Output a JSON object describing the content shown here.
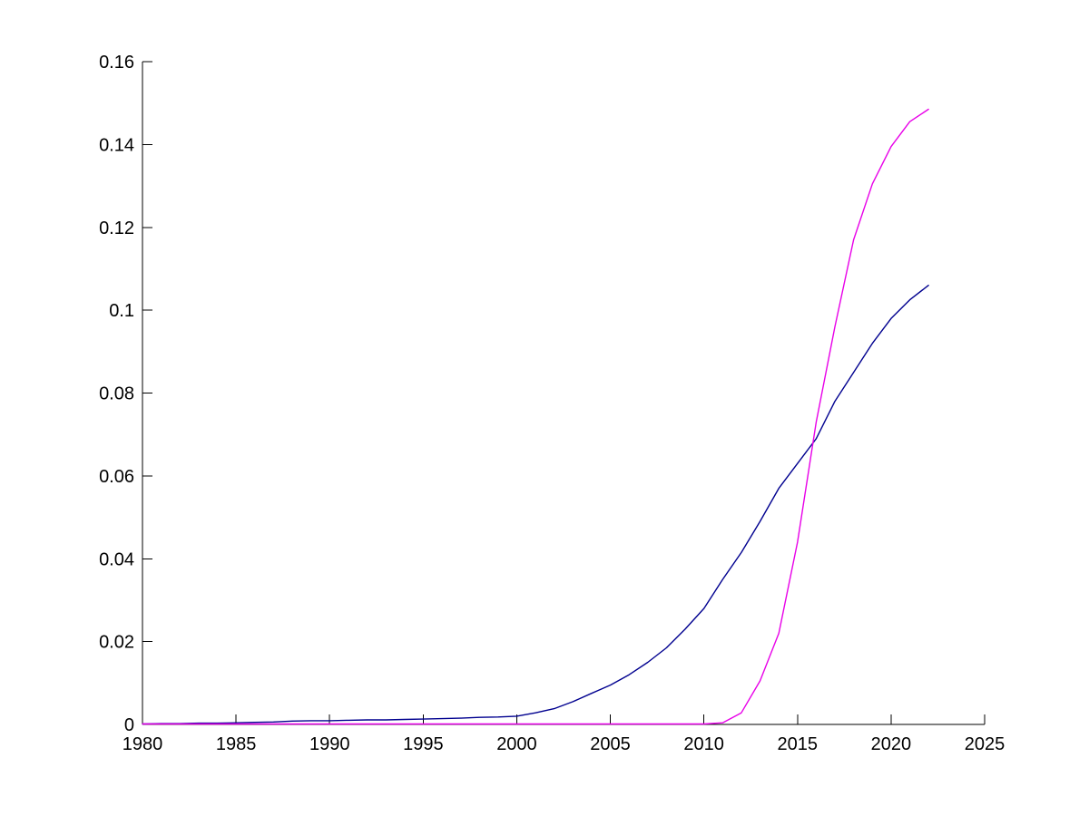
{
  "figure": {
    "background": "#ffffff",
    "title": ""
  },
  "chart_data": {
    "type": "line",
    "title": "",
    "xlabel": "",
    "ylabel": "",
    "grid": false,
    "legend_position": "none",
    "xlim": [
      1980,
      2025
    ],
    "ylim": [
      0,
      0.16
    ],
    "x_ticks": [
      1980,
      1985,
      1990,
      1995,
      2000,
      2005,
      2010,
      2015,
      2020,
      2025
    ],
    "x_tick_labels": [
      "1980",
      "1985",
      "1990",
      "1995",
      "2000",
      "2005",
      "2010",
      "2015",
      "2020",
      "2025"
    ],
    "y_ticks": [
      0,
      0.02,
      0.04,
      0.06,
      0.08,
      0.1,
      0.12,
      0.14,
      0.16
    ],
    "y_tick_labels": [
      "0",
      "0.02",
      "0.04",
      "0.06",
      "0.08",
      "0.1",
      "0.12",
      "0.14",
      "0.16"
    ],
    "axis_color": "#000000",
    "tick_direction": "in",
    "x": [
      1980,
      1981,
      1982,
      1983,
      1984,
      1985,
      1986,
      1987,
      1988,
      1989,
      1990,
      1991,
      1992,
      1993,
      1994,
      1995,
      1996,
      1997,
      1998,
      1999,
      2000,
      2001,
      2002,
      2003,
      2004,
      2005,
      2006,
      2007,
      2008,
      2009,
      2010,
      2011,
      2012,
      2013,
      2014,
      2015,
      2016,
      2017,
      2018,
      2019,
      2020,
      2021,
      2022
    ],
    "series": [
      {
        "name": "dark-blue-curve",
        "color": "#00008f",
        "values": [
          0.0001,
          0.0002,
          0.0002,
          0.0003,
          0.0003,
          0.0004,
          0.0005,
          0.0006,
          0.0008,
          0.0009,
          0.0009,
          0.001,
          0.0011,
          0.0011,
          0.0012,
          0.0013,
          0.0014,
          0.0015,
          0.0017,
          0.0018,
          0.002,
          0.0028,
          0.0038,
          0.0055,
          0.0075,
          0.0095,
          0.012,
          0.015,
          0.0185,
          0.023,
          0.028,
          0.035,
          0.0415,
          0.049,
          0.057,
          0.063,
          0.069,
          0.078,
          0.085,
          0.092,
          0.098,
          0.1025,
          0.106
        ]
      },
      {
        "name": "magenta-curve",
        "color": "#e800e8",
        "values": [
          0.0001,
          0.0001,
          0.0001,
          0.0001,
          0.0001,
          0.0001,
          0.0001,
          0.0001,
          0.0001,
          0.0001,
          0.0001,
          0.0001,
          0.0001,
          0.0001,
          0.0001,
          0.0001,
          0.0001,
          0.0001,
          0.0001,
          0.0001,
          0.0001,
          0.0001,
          0.0001,
          0.0001,
          0.0001,
          0.0001,
          0.0001,
          0.0001,
          0.0001,
          0.0001,
          0.0001,
          0.0004,
          0.0028,
          0.0105,
          0.022,
          0.044,
          0.073,
          0.096,
          0.117,
          0.1305,
          0.1395,
          0.1455,
          0.1485
        ]
      }
    ],
    "annotations": {
      "crossing_point": {
        "x": 2015.9,
        "y": 0.068
      }
    }
  }
}
